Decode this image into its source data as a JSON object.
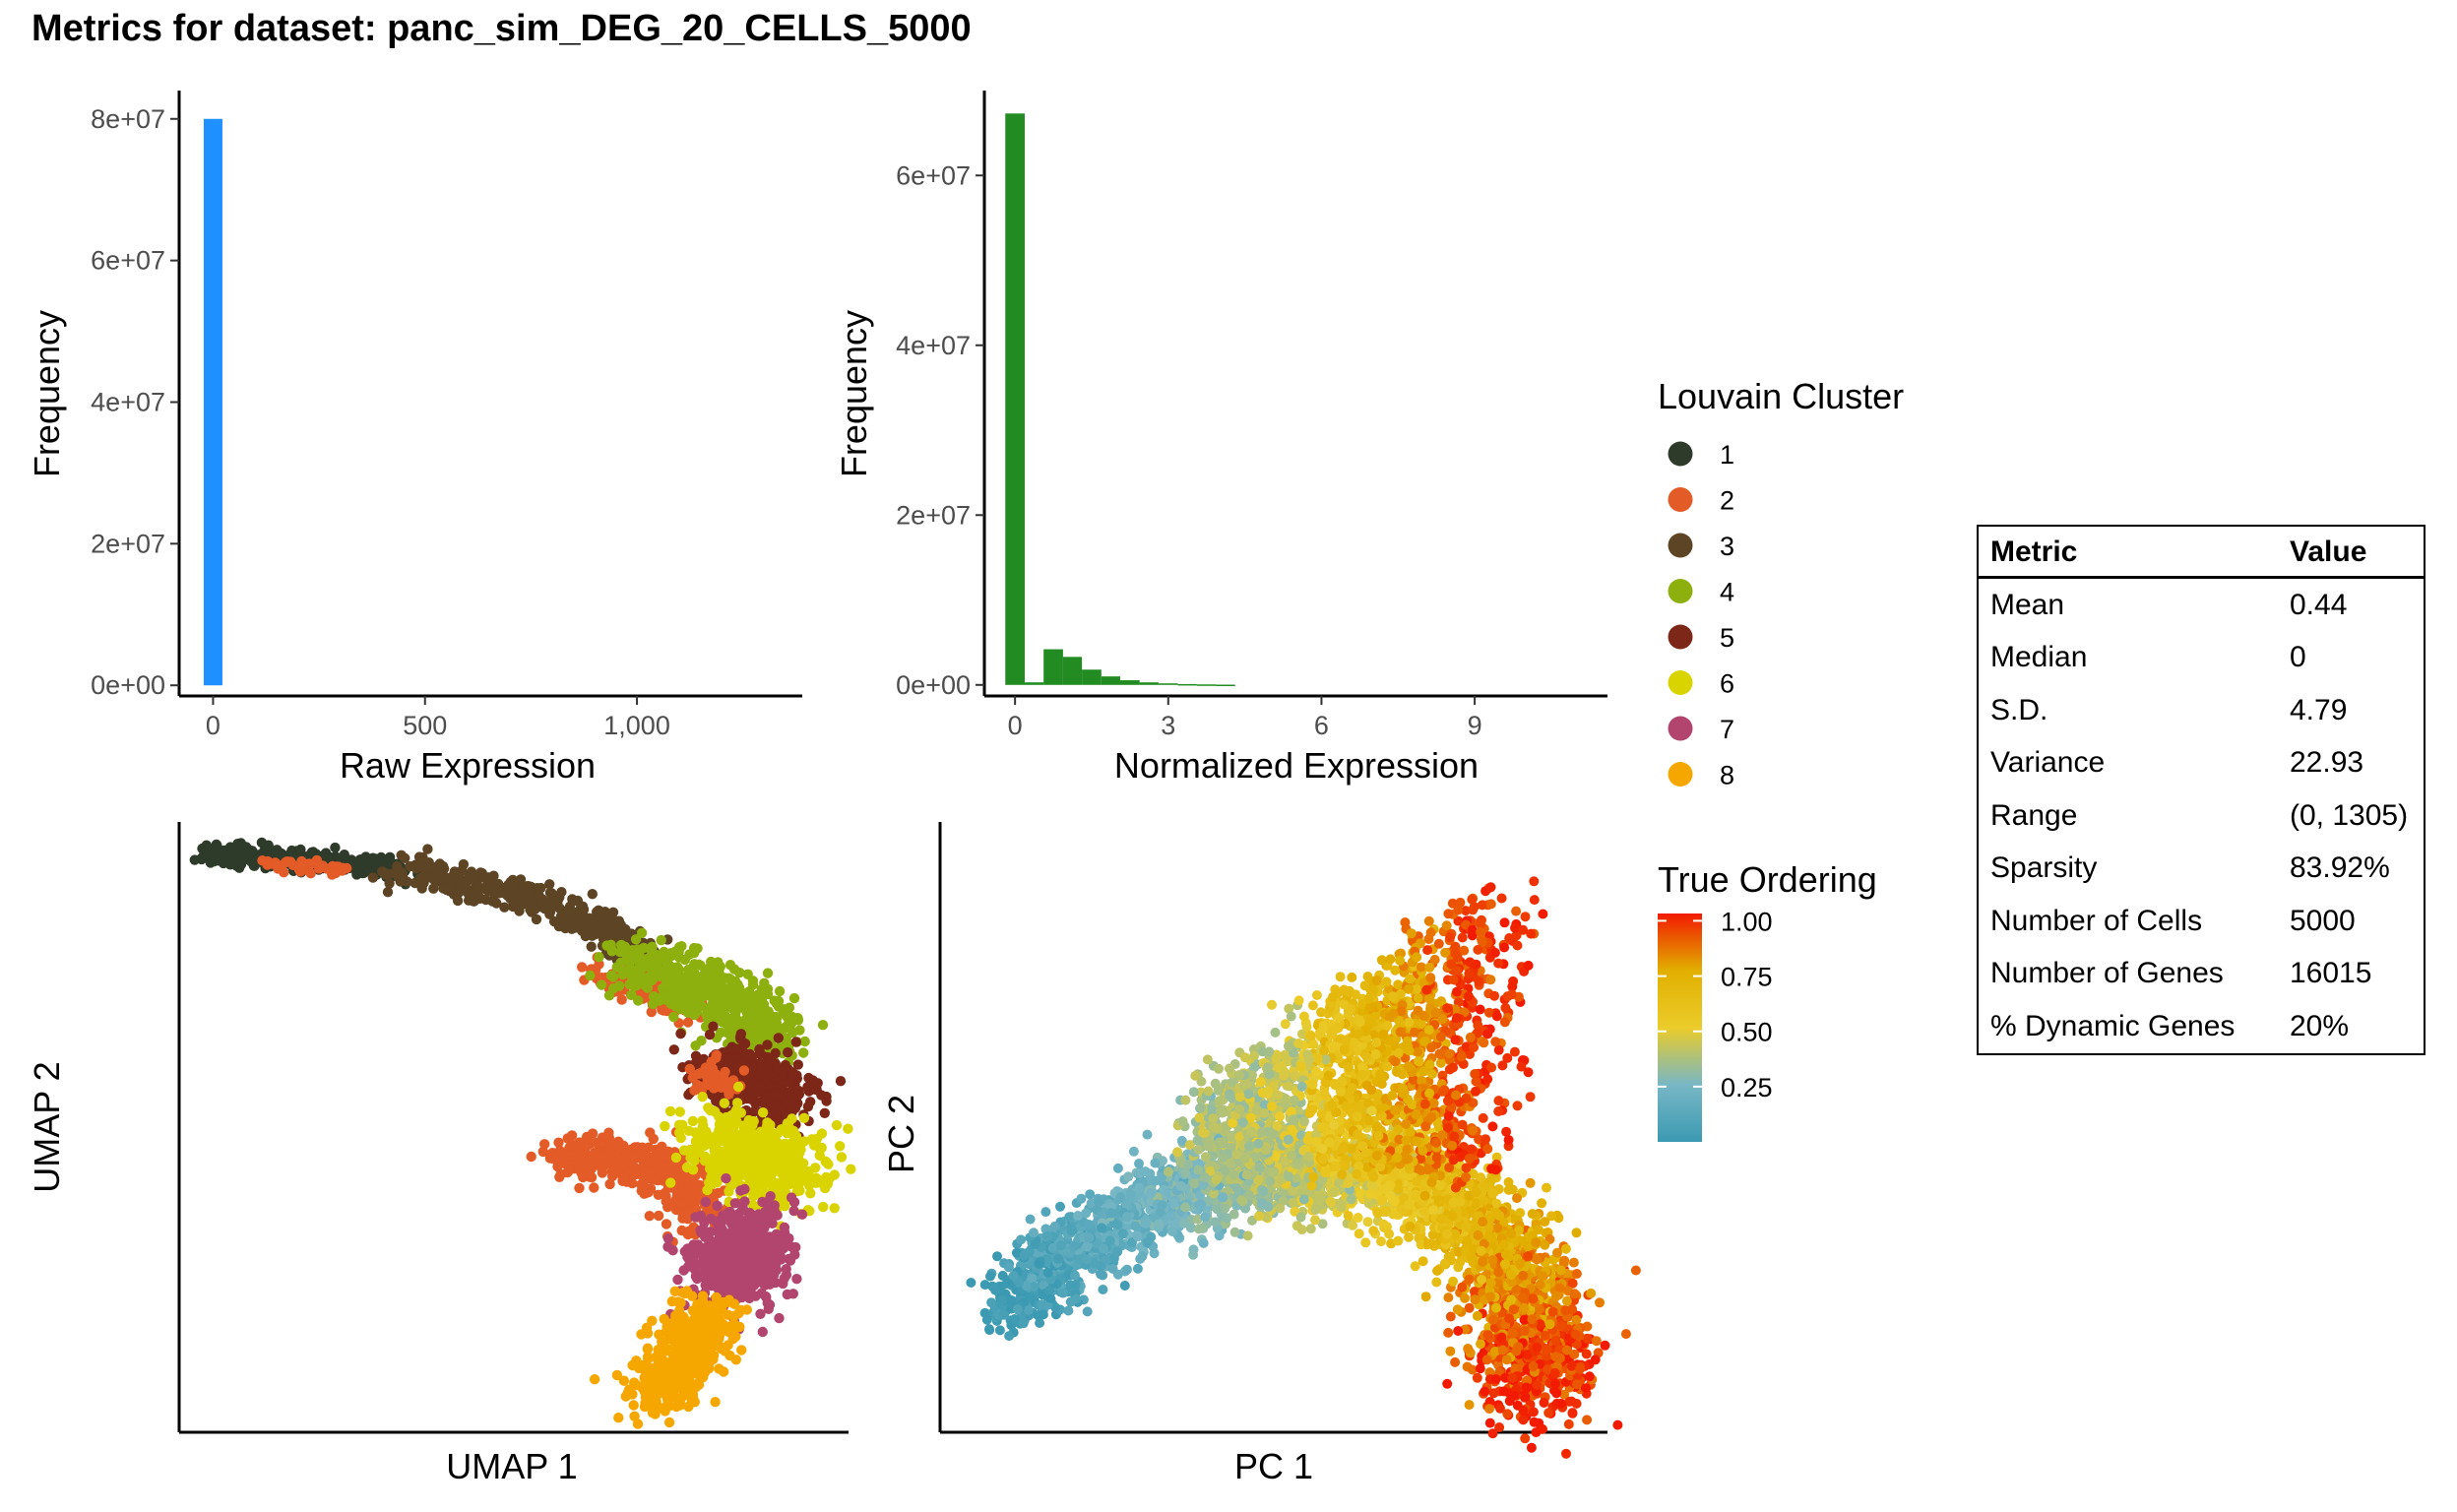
{
  "title": "Metrics for dataset: panc_sim_DEG_20_CELLS_5000",
  "chart_data": [
    {
      "type": "bar",
      "panel": "raw-histogram",
      "title": "",
      "xlabel": "Raw Expression",
      "ylabel": "Frequency",
      "xlim": [
        -80,
        1390
      ],
      "ylim": [
        -1500000,
        84000000
      ],
      "xticks": [
        0,
        500,
        1000
      ],
      "xtick_labels": [
        "0",
        "500",
        "1,000"
      ],
      "yticks": [
        0,
        20000000,
        40000000,
        60000000,
        80000000
      ],
      "ytick_labels": [
        "0e+00",
        "2e+07",
        "4e+07",
        "6e+07",
        "8e+07"
      ],
      "bar_color": "#1E90FF",
      "bins": [
        {
          "x0": -22,
          "x1": 22,
          "value": 80000000
        }
      ]
    },
    {
      "type": "bar",
      "panel": "normalized-histogram",
      "title": "",
      "xlabel": "Normalized Expression",
      "ylabel": "Frequency",
      "xlim": [
        -0.6,
        11.6
      ],
      "ylim": [
        -1300000,
        70000000
      ],
      "xticks": [
        0,
        3,
        6,
        9
      ],
      "xtick_labels": [
        "0",
        "3",
        "6",
        "9"
      ],
      "yticks": [
        0,
        20000000,
        40000000,
        60000000
      ],
      "ytick_labels": [
        "0e+00",
        "2e+07",
        "4e+07",
        "6e+07"
      ],
      "bar_color": "#228B22",
      "bins": [
        {
          "x0": -0.19,
          "x1": 0.19,
          "value": 67300000
        },
        {
          "x0": 0.19,
          "x1": 0.56,
          "value": 300000
        },
        {
          "x0": 0.56,
          "x1": 0.94,
          "value": 4200000
        },
        {
          "x0": 0.94,
          "x1": 1.31,
          "value": 3300000
        },
        {
          "x0": 1.31,
          "x1": 1.69,
          "value": 1800000
        },
        {
          "x0": 1.69,
          "x1": 2.06,
          "value": 1000000
        },
        {
          "x0": 2.06,
          "x1": 2.44,
          "value": 550000
        },
        {
          "x0": 2.44,
          "x1": 2.81,
          "value": 300000
        },
        {
          "x0": 2.81,
          "x1": 3.19,
          "value": 180000
        },
        {
          "x0": 3.19,
          "x1": 3.56,
          "value": 100000
        },
        {
          "x0": 3.56,
          "x1": 3.94,
          "value": 60000
        },
        {
          "x0": 3.94,
          "x1": 4.31,
          "value": 30000
        }
      ]
    },
    {
      "type": "scatter",
      "panel": "umap",
      "title": "",
      "xlabel": "UMAP 1",
      "ylabel": "UMAP 2",
      "n_points": 5000,
      "color_by": "Louvain Cluster",
      "note": "axes without ticks; points grouped by Louvain cluster along a curved trajectory"
    },
    {
      "type": "scatter",
      "panel": "pca",
      "title": "",
      "xlabel": "PC 1",
      "ylabel": "PC 2",
      "n_points": 5000,
      "color_by": "True Ordering",
      "color_range": [
        0,
        1
      ]
    }
  ],
  "louvain_legend": {
    "title": "Louvain Cluster",
    "items": [
      {
        "label": "1",
        "color": "#2F3B2A"
      },
      {
        "label": "2",
        "color": "#E35B27"
      },
      {
        "label": "3",
        "color": "#5D4424"
      },
      {
        "label": "4",
        "color": "#8DB00F"
      },
      {
        "label": "5",
        "color": "#7D2718"
      },
      {
        "label": "6",
        "color": "#D9D400"
      },
      {
        "label": "7",
        "color": "#B2456E"
      },
      {
        "label": "8",
        "color": "#F5A700"
      }
    ]
  },
  "ordering_legend": {
    "title": "True Ordering",
    "ticks": [
      "1.00",
      "0.75",
      "0.50",
      "0.25"
    ],
    "tick_values": [
      1.0,
      0.75,
      0.5,
      0.25
    ],
    "colors": [
      "#3B9AB2",
      "#78B7C5",
      "#EBCC2A",
      "#E1AF00",
      "#F21A00"
    ]
  },
  "metrics_table": {
    "headers": [
      "Metric",
      "Value"
    ],
    "rows": [
      {
        "metric": "Mean",
        "value": "0.44"
      },
      {
        "metric": "Median",
        "value": "0"
      },
      {
        "metric": "S.D.",
        "value": "4.79"
      },
      {
        "metric": "Variance",
        "value": "22.93"
      },
      {
        "metric": "Range",
        "value": "(0, 1305)"
      },
      {
        "metric": "Sparsity",
        "value": "83.92%"
      },
      {
        "metric": "Number of Cells",
        "value": "5000"
      },
      {
        "metric": "Number of Genes",
        "value": "16015"
      },
      {
        "metric": "% Dynamic Genes",
        "value": "20%"
      }
    ]
  }
}
